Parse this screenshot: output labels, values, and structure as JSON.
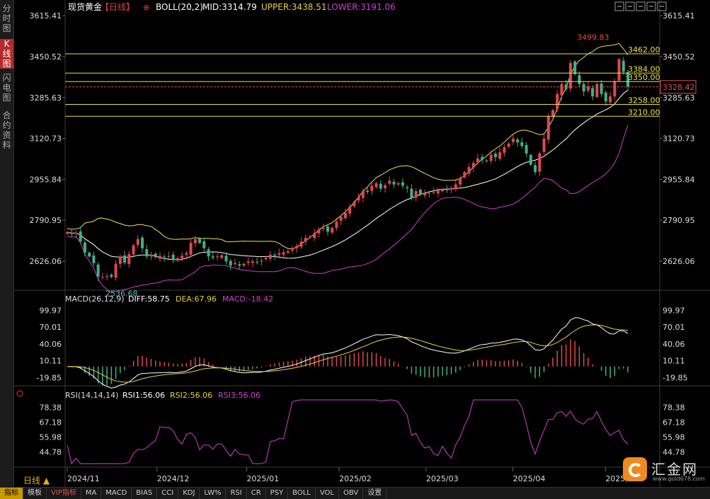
{
  "sidebar": {
    "tabs": [
      {
        "label": "分\n时\n图",
        "active": false
      },
      {
        "label": "K\n线\n图",
        "active": true
      },
      {
        "label": "闪\n电\n图",
        "active": false
      },
      {
        "label": "合\n约\n资\n料",
        "active": false
      }
    ]
  },
  "header": {
    "instrument": "现货黄金",
    "period": "【日线】",
    "indicator": "BOLL(20,2)",
    "mid": "MID:3314.79",
    "upper": "UPPER:3438.51",
    "lower": "LOWER:3191.06"
  },
  "toolbar_icons": [
    "crosshair-icon",
    "zoom-in-icon",
    "zoom-out-icon",
    "fit-icon",
    "settings-icon"
  ],
  "period_label": "日线 ▲",
  "bottom_tabs": [
    "指标",
    "模板",
    "VIP指标",
    "MA",
    "MACD",
    "BIAS",
    "CCI",
    "KDJ",
    "LW%",
    "RSI",
    "CR",
    "PSY",
    "BOLL",
    "VOL",
    "OBV",
    "设置"
  ],
  "brand": {
    "name": "汇金网",
    "url": "www.gold678.com"
  },
  "colors": {
    "up": "#e0484f",
    "down": "#3fb08a",
    "upper": "#f0e05a",
    "mid": "#ffffff",
    "lower": "#d23ad2",
    "hline": "#e8e040",
    "current": "#e05050"
  },
  "chart_data": [
    {
      "type": "candlestick",
      "ylim": [
        2526,
        3616
      ],
      "yticks": [
        "3615.41",
        "3450.52",
        "3285.63",
        "3120.73",
        "2955.84",
        "2790.95",
        "2626.06"
      ],
      "xticks": [
        "2024/11",
        "2024/12",
        "2025/01",
        "2025/02",
        "2025/03",
        "2025/04",
        "2025/05"
      ],
      "closes": [
        2742,
        2736,
        2740,
        2705,
        2660,
        2645,
        2618,
        2564,
        2562,
        2565,
        2563,
        2615,
        2645,
        2620,
        2655,
        2690,
        2715,
        2678,
        2645,
        2652,
        2642,
        2647,
        2642,
        2646,
        2632,
        2638,
        2648,
        2658,
        2700,
        2715,
        2700,
        2678,
        2645,
        2640,
        2645,
        2650,
        2625,
        2608,
        2618,
        2608,
        2615,
        2625,
        2625,
        2622,
        2628,
        2640,
        2652,
        2648,
        2658,
        2662,
        2666,
        2672,
        2688,
        2705,
        2720,
        2725,
        2740,
        2755,
        2760,
        2745,
        2760,
        2785,
        2805,
        2820,
        2845,
        2865,
        2885,
        2910,
        2905,
        2930,
        2940,
        2918,
        2932,
        2950,
        2935,
        2940,
        2930,
        2920,
        2880,
        2908,
        2895,
        2900,
        2900,
        2905,
        2910,
        2915,
        2912,
        2920,
        2935,
        2960,
        2985,
        3005,
        3022,
        3040,
        3035,
        3030,
        3055,
        3045,
        3065,
        3085,
        3100,
        3120,
        3105,
        3090,
        3060,
        3015,
        2985,
        3060,
        3120,
        3210,
        3235,
        3300,
        3340,
        3320,
        3425,
        3380,
        3340,
        3310,
        3330,
        3290,
        3340,
        3300,
        3270,
        3290,
        3350,
        3440,
        3390,
        3330
      ],
      "low_label": "2536.68",
      "high_label": "3499.83",
      "hlines": [
        {
          "value": 3462.0,
          "label": "3462.00"
        },
        {
          "value": 3384.0,
          "label": "3384.00"
        },
        {
          "value": 3350.0,
          "label": "3350.00"
        },
        {
          "value": 3258.0,
          "label": "3258.00"
        },
        {
          "value": 3210.0,
          "label": "3210.00"
        }
      ],
      "current": {
        "value": 3328.42,
        "label": "3328.42"
      }
    },
    {
      "type": "macd",
      "title": "MACD(26,12,9)",
      "diff": "DIFF:58.75",
      "dea": "DEA:67.96",
      "macd": "MACD:-18.42",
      "ylim": [
        -28,
        108
      ],
      "yticks": [
        "99.97",
        "70.01",
        "40.06",
        "10.11",
        "-19.85"
      ]
    },
    {
      "type": "line",
      "title": "RSI(14,14,14)",
      "rsi1": "RSI1:56.06",
      "rsi2": "RSI2:56.06",
      "rsi3": "RSI3:56.06",
      "ylim": [
        36,
        84
      ],
      "yticks": [
        "78.38",
        "67.18",
        "55.98",
        "44.78"
      ]
    }
  ]
}
